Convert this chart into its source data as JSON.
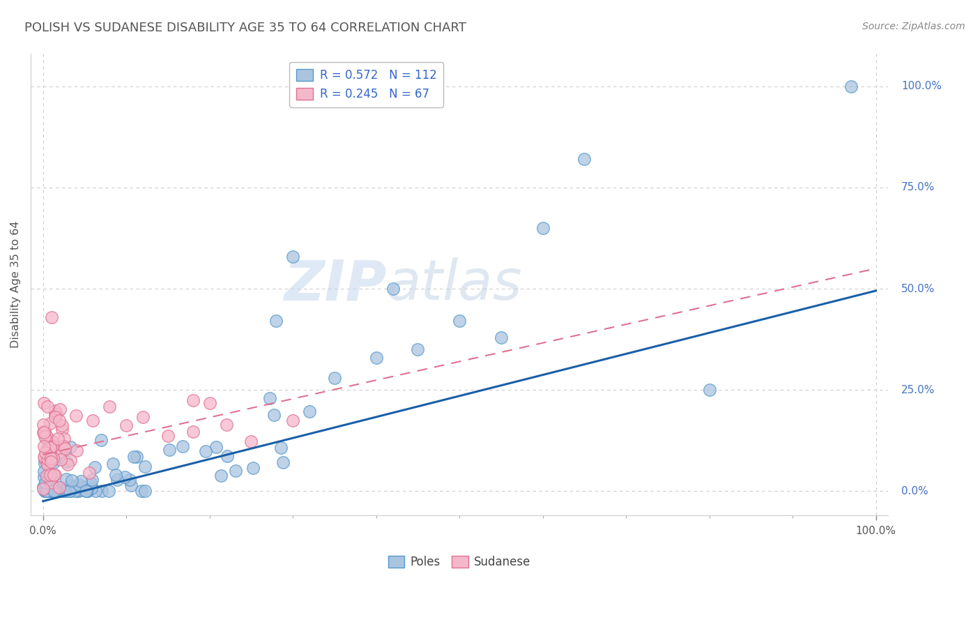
{
  "title": "POLISH VS SUDANESE DISABILITY AGE 35 TO 64 CORRELATION CHART",
  "source": "Source: ZipAtlas.com",
  "ylabel": "Disability Age 35 to 64",
  "ylabel_right_labels": [
    "0.0%",
    "25.0%",
    "50.0%",
    "75.0%",
    "100.0%"
  ],
  "ylabel_right_positions": [
    0.0,
    0.25,
    0.5,
    0.75,
    1.0
  ],
  "legend_r1": "R = 0.572",
  "legend_n1": "N = 112",
  "legend_r2": "R = 0.245",
  "legend_n2": "N = 67",
  "poles_color": "#aac4e0",
  "poles_edge_color": "#5599cc",
  "sudanese_color": "#f5b8cb",
  "sudanese_edge_color": "#e07090",
  "line_blue": "#1a5fa8",
  "line_pink": "#e07090",
  "watermark_zip": "ZIP",
  "watermark_atlas": "atlas",
  "background_color": "#ffffff",
  "grid_color": "#cccccc",
  "title_color": "#555555",
  "axis_label_color": "#555555",
  "legend_r_color": "#3366cc",
  "right_label_color": "#4472c4"
}
